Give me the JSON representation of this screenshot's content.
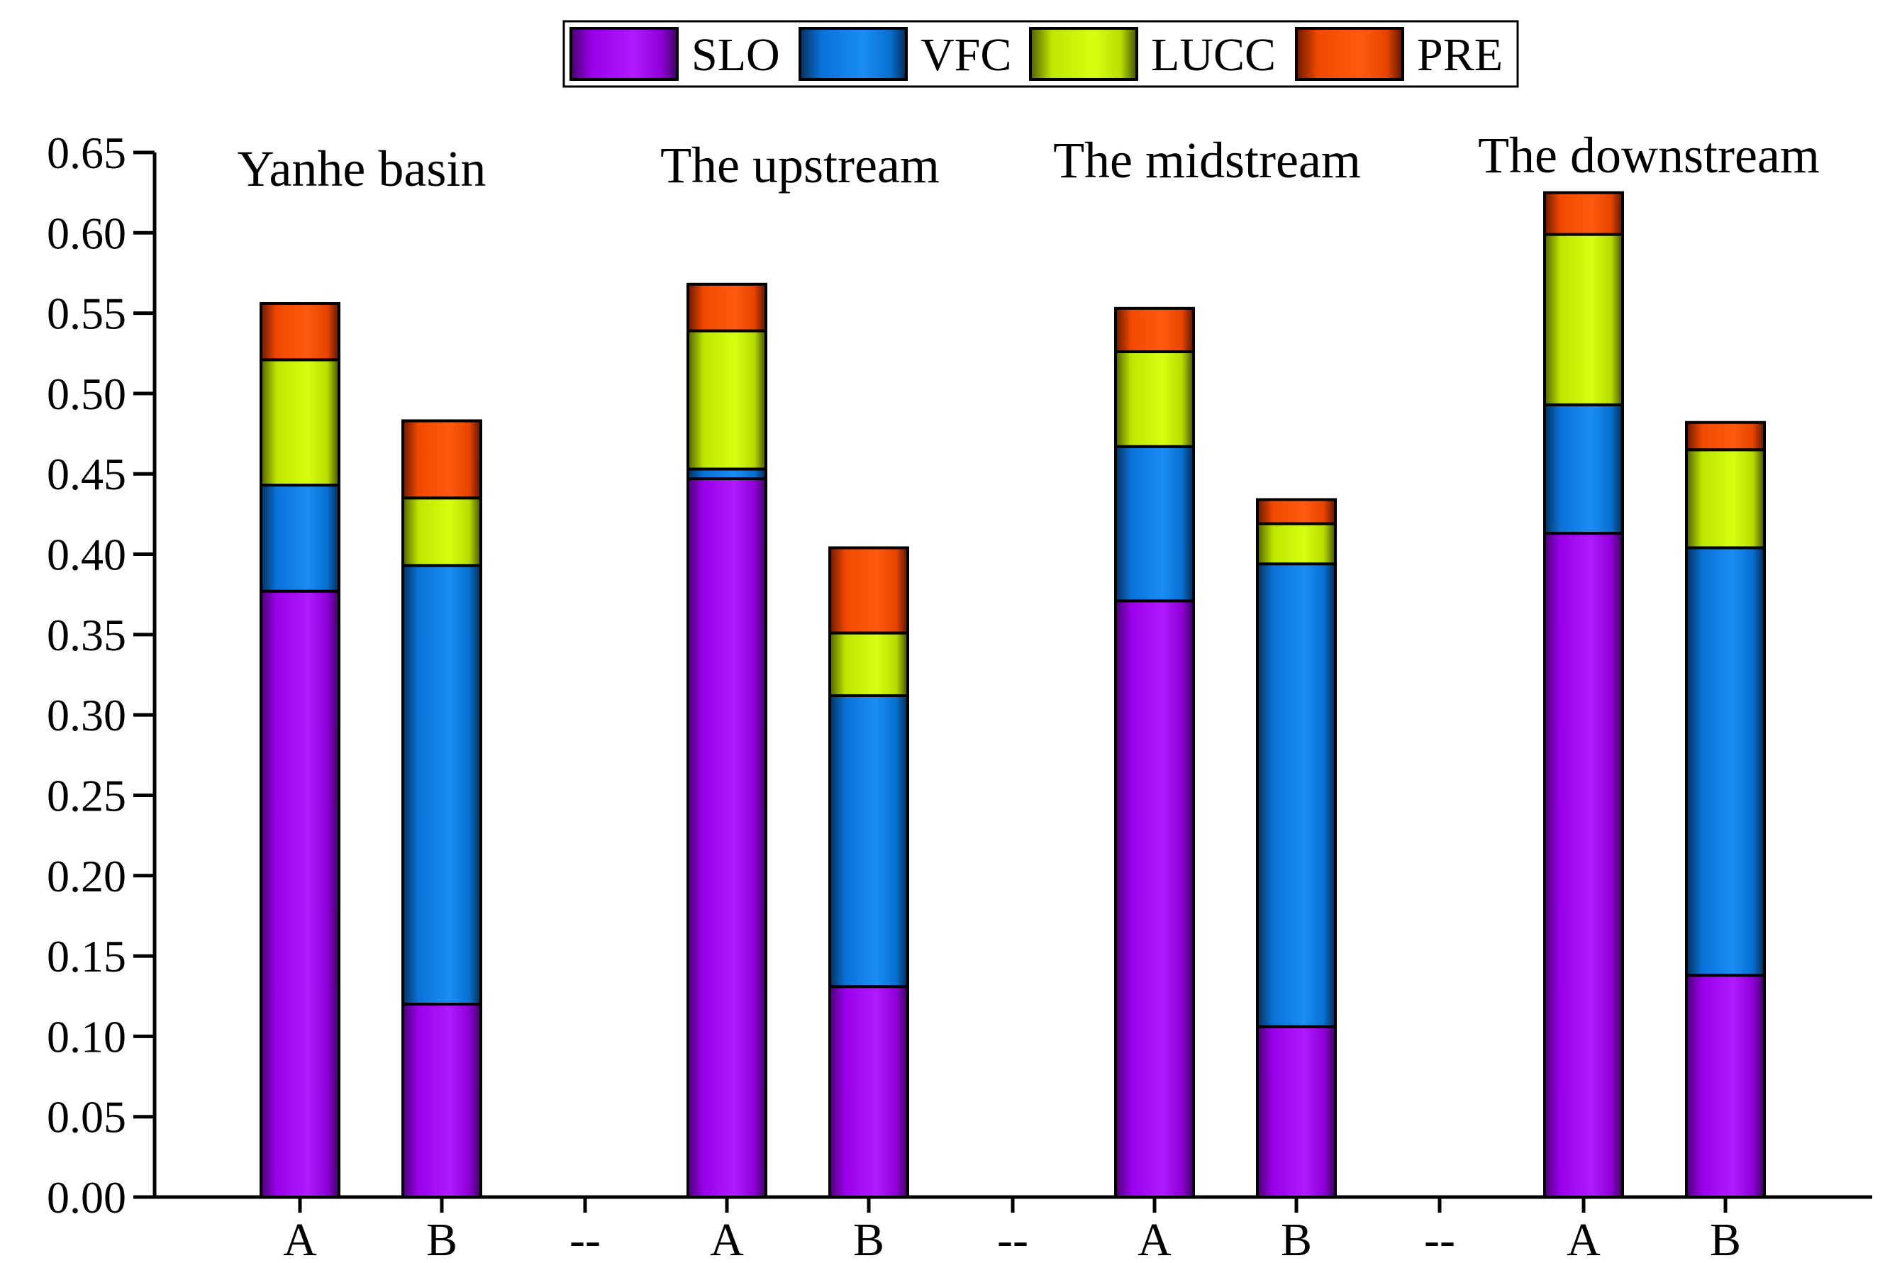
{
  "chart_data": {
    "type": "bar",
    "stacked": true,
    "title": "",
    "xlabel": "",
    "ylabel": "",
    "ylim": [
      0,
      0.65
    ],
    "y_ticks": [
      "0.00",
      "0.05",
      "0.10",
      "0.15",
      "0.20",
      "0.25",
      "0.30",
      "0.35",
      "0.40",
      "0.45",
      "0.50",
      "0.55",
      "0.60",
      "0.65"
    ],
    "legend_position": "top-center",
    "categories": [
      "A",
      "B",
      "--",
      "A",
      "B",
      "--",
      "A",
      "B",
      "--",
      "A",
      "B"
    ],
    "group_labels": [
      "Yanhe basin",
      "The upstream",
      "The midstream",
      "The downstream"
    ],
    "series": [
      {
        "name": "SLO",
        "color": "#a100f2",
        "values": [
          0.377,
          0.12,
          null,
          0.447,
          0.131,
          null,
          0.371,
          0.106,
          null,
          0.413,
          0.138
        ]
      },
      {
        "name": "VFC",
        "color": "#0a7ee6",
        "values": [
          0.066,
          0.273,
          null,
          0.006,
          0.181,
          null,
          0.096,
          0.288,
          null,
          0.08,
          0.266
        ]
      },
      {
        "name": "LUCC",
        "color": "#c8f000",
        "values": [
          0.078,
          0.042,
          null,
          0.086,
          0.039,
          null,
          0.059,
          0.025,
          null,
          0.106,
          0.061
        ]
      },
      {
        "name": "PRE",
        "color": "#ff4d00",
        "values": [
          0.035,
          0.048,
          null,
          0.029,
          0.053,
          null,
          0.027,
          0.015,
          null,
          0.026,
          0.017
        ]
      }
    ]
  }
}
